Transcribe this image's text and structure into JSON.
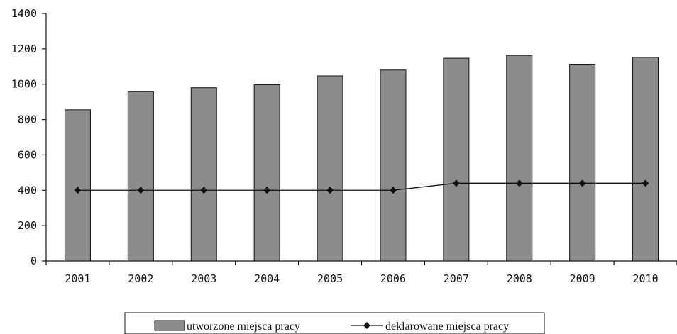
{
  "chart_data": {
    "type": "bar",
    "categories": [
      "2001",
      "2002",
      "2003",
      "2004",
      "2005",
      "2006",
      "2007",
      "2008",
      "2009",
      "2010"
    ],
    "series": [
      {
        "name": "utworzone miejsca pracy",
        "kind": "bar",
        "values": [
          855,
          958,
          980,
          997,
          1047,
          1080,
          1147,
          1163,
          1113,
          1152
        ],
        "color": "#8c8c8c"
      },
      {
        "name": "deklarowane miejsca pracy",
        "kind": "line",
        "marker": "diamond",
        "values": [
          400,
          400,
          400,
          400,
          400,
          400,
          440,
          440,
          440,
          440
        ],
        "color": "#111111"
      }
    ],
    "ylim": [
      0,
      1400
    ],
    "yticks": [
      0,
      200,
      400,
      600,
      800,
      1000,
      1200,
      1400
    ],
    "title": "",
    "xlabel": "",
    "ylabel": "",
    "grid": false,
    "legend_position": "bottom"
  }
}
